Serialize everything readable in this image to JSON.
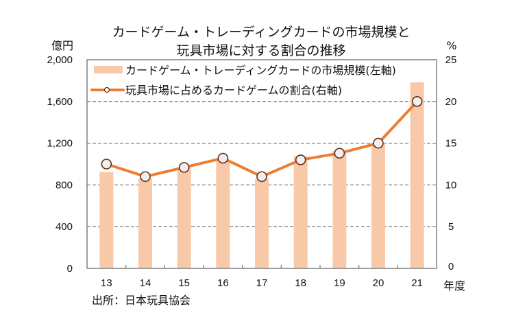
{
  "chart_data": {
    "type": "bar+line",
    "title": [
      "カードゲーム・トレーディングカードの市場規模と",
      "玩具市場に対する割合の推移"
    ],
    "categories": [
      "13",
      "14",
      "15",
      "16",
      "17",
      "18",
      "19",
      "20",
      "21"
    ],
    "xlabel": "年度",
    "left_axis": {
      "unit": "億円",
      "ylim": [
        0,
        2000
      ],
      "ticks": [
        "0",
        "400",
        "800",
        "1,200",
        "1,600",
        "2,000"
      ],
      "tick_values": [
        0,
        400,
        800,
        1200,
        1600,
        2000
      ]
    },
    "right_axis": {
      "unit": "%",
      "ylim": [
        0,
        25
      ],
      "ticks": [
        "0",
        "5",
        "10",
        "15",
        "20",
        "25"
      ],
      "tick_values": [
        0,
        5,
        10,
        15,
        20,
        25
      ]
    },
    "grid": "dashed horizontal",
    "series": [
      {
        "name": "カードゲーム・トレーディングカードの市場規模(左軸)",
        "type": "bar",
        "axis": "left",
        "color": "#f8c9a8",
        "values": [
          923,
          862,
          970,
          1040,
          860,
          1075,
          1125,
          1190,
          1783
        ]
      },
      {
        "name": "玩具市場に占めるカードゲームの割合(右軸)",
        "type": "line",
        "axis": "right",
        "color": "#ed7d31",
        "marker_fill": "#eef0f4",
        "marker_stroke": "#6b2d0c",
        "values": [
          12.5,
          11.0,
          12.1,
          13.2,
          11.0,
          13.0,
          13.8,
          15.0,
          20.0
        ]
      }
    ],
    "legend_placement": "top-left inside",
    "source": "出所：日本玩具協会"
  }
}
